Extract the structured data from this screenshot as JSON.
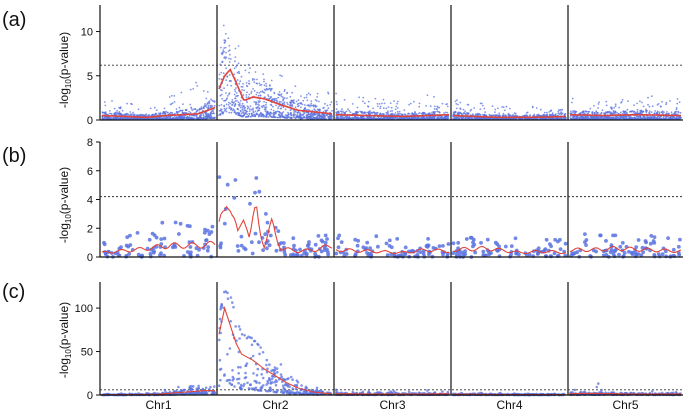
{
  "figure": {
    "colors": {
      "points": "#5b73e0",
      "trend": "#e0443a",
      "axis": "#111111",
      "threshold": "#333333"
    }
  },
  "chart_data": [
    {
      "type": "scatter",
      "panel": "(a)",
      "ylabel_main": "-log",
      "ylabel_sub": "10",
      "ylabel_tail": "(p-value)",
      "ylim": [
        0,
        13
      ],
      "yticks": [
        0,
        5,
        10
      ],
      "threshold": 6.2,
      "chromosomes": [
        "Chr1",
        "Chr2",
        "Chr3",
        "Chr4",
        "Chr5"
      ],
      "density": "high",
      "profile": [
        {
          "chr": 1,
          "x": 0.0,
          "hi": 2.0,
          "med": 0.5
        },
        {
          "chr": 1,
          "x": 0.2,
          "hi": 2.5,
          "med": 0.4
        },
        {
          "chr": 1,
          "x": 0.4,
          "hi": 1.0,
          "med": 0.3
        },
        {
          "chr": 1,
          "x": 0.55,
          "hi": 2.5,
          "med": 0.5
        },
        {
          "chr": 1,
          "x": 0.7,
          "hi": 3.5,
          "med": 0.6
        },
        {
          "chr": 1,
          "x": 0.85,
          "hi": 4.5,
          "med": 0.7
        },
        {
          "chr": 1,
          "x": 1.0,
          "hi": 3.0,
          "med": 1.4
        },
        {
          "chr": 2,
          "x": 0.0,
          "hi": 9.0,
          "med": 3.5
        },
        {
          "chr": 2,
          "x": 0.05,
          "hi": 11.0,
          "med": 5.0
        },
        {
          "chr": 2,
          "x": 0.1,
          "hi": 12.0,
          "med": 5.7
        },
        {
          "chr": 2,
          "x": 0.16,
          "hi": 9.0,
          "med": 4.0
        },
        {
          "chr": 2,
          "x": 0.22,
          "hi": 6.0,
          "med": 2.2
        },
        {
          "chr": 2,
          "x": 0.3,
          "hi": 6.5,
          "med": 2.6
        },
        {
          "chr": 2,
          "x": 0.4,
          "hi": 6.0,
          "med": 2.4
        },
        {
          "chr": 2,
          "x": 0.55,
          "hi": 5.0,
          "med": 1.7
        },
        {
          "chr": 2,
          "x": 0.7,
          "hi": 4.0,
          "med": 1.1
        },
        {
          "chr": 2,
          "x": 0.85,
          "hi": 3.5,
          "med": 0.9
        },
        {
          "chr": 2,
          "x": 1.0,
          "hi": 3.0,
          "med": 0.7
        },
        {
          "chr": 3,
          "x": 0.0,
          "hi": 3.0,
          "med": 0.6
        },
        {
          "chr": 3,
          "x": 0.3,
          "hi": 2.5,
          "med": 0.5
        },
        {
          "chr": 3,
          "x": 0.6,
          "hi": 2.0,
          "med": 0.4
        },
        {
          "chr": 3,
          "x": 0.8,
          "hi": 3.0,
          "med": 0.5
        },
        {
          "chr": 3,
          "x": 1.0,
          "hi": 3.0,
          "med": 0.6
        },
        {
          "chr": 4,
          "x": 0.0,
          "hi": 2.5,
          "med": 0.5
        },
        {
          "chr": 4,
          "x": 0.4,
          "hi": 1.5,
          "med": 0.3
        },
        {
          "chr": 4,
          "x": 0.7,
          "hi": 1.5,
          "med": 0.3
        },
        {
          "chr": 4,
          "x": 1.0,
          "hi": 1.5,
          "med": 0.4
        },
        {
          "chr": 5,
          "x": 0.0,
          "hi": 2.5,
          "med": 0.6
        },
        {
          "chr": 5,
          "x": 0.3,
          "hi": 2.0,
          "med": 0.5
        },
        {
          "chr": 5,
          "x": 0.6,
          "hi": 3.0,
          "med": 0.6
        },
        {
          "chr": 5,
          "x": 1.0,
          "hi": 2.5,
          "med": 0.5
        }
      ]
    },
    {
      "type": "scatter",
      "panel": "(b)",
      "ylabel_main": "-log",
      "ylabel_sub": "10",
      "ylabel_tail": "(p-value)",
      "ylim": [
        0,
        8
      ],
      "yticks": [
        0,
        2,
        4,
        6,
        8
      ],
      "threshold": 4.2,
      "chromosomes": [
        "Chr1",
        "Chr2",
        "Chr3",
        "Chr4",
        "Chr5"
      ],
      "density": "low",
      "profile": [
        {
          "chr": 1,
          "x": 0.0,
          "hi": 1.5,
          "med": 0.3
        },
        {
          "chr": 1,
          "x": 0.3,
          "hi": 2.0,
          "med": 0.5
        },
        {
          "chr": 1,
          "x": 0.6,
          "hi": 2.5,
          "med": 0.8
        },
        {
          "chr": 1,
          "x": 0.85,
          "hi": 2.0,
          "med": 0.8
        },
        {
          "chr": 1,
          "x": 1.0,
          "hi": 2.5,
          "med": 0.9
        },
        {
          "chr": 2,
          "x": 0.0,
          "hi": 5.5,
          "med": 2.0
        },
        {
          "chr": 2,
          "x": 0.07,
          "hi": 6.8,
          "med": 4.8
        },
        {
          "chr": 2,
          "x": 0.12,
          "hi": 6.0,
          "med": 2.5
        },
        {
          "chr": 2,
          "x": 0.17,
          "hi": 5.0,
          "med": 1.5
        },
        {
          "chr": 2,
          "x": 0.22,
          "hi": 5.5,
          "med": 3.5
        },
        {
          "chr": 2,
          "x": 0.27,
          "hi": 5.0,
          "med": 1.2
        },
        {
          "chr": 2,
          "x": 0.33,
          "hi": 5.5,
          "med": 3.3
        },
        {
          "chr": 2,
          "x": 0.4,
          "hi": 3.0,
          "med": 0.8
        },
        {
          "chr": 2,
          "x": 0.47,
          "hi": 3.0,
          "med": 2.2
        },
        {
          "chr": 2,
          "x": 0.55,
          "hi": 2.0,
          "med": 0.6
        },
        {
          "chr": 2,
          "x": 0.7,
          "hi": 1.5,
          "med": 0.4
        },
        {
          "chr": 2,
          "x": 0.85,
          "hi": 1.5,
          "med": 0.5
        },
        {
          "chr": 2,
          "x": 1.0,
          "hi": 1.5,
          "med": 0.8
        },
        {
          "chr": 3,
          "x": 0.0,
          "hi": 1.5,
          "med": 0.5
        },
        {
          "chr": 3,
          "x": 0.3,
          "hi": 1.5,
          "med": 0.4
        },
        {
          "chr": 3,
          "x": 0.6,
          "hi": 1.2,
          "med": 0.3
        },
        {
          "chr": 3,
          "x": 0.8,
          "hi": 1.5,
          "med": 0.5
        },
        {
          "chr": 3,
          "x": 1.0,
          "hi": 1.5,
          "med": 0.4
        },
        {
          "chr": 4,
          "x": 0.0,
          "hi": 1.5,
          "med": 0.5
        },
        {
          "chr": 4,
          "x": 0.3,
          "hi": 1.2,
          "med": 0.6
        },
        {
          "chr": 4,
          "x": 0.6,
          "hi": 1.5,
          "med": 0.3
        },
        {
          "chr": 4,
          "x": 0.8,
          "hi": 1.2,
          "med": 0.4
        },
        {
          "chr": 4,
          "x": 1.0,
          "hi": 1.2,
          "med": 0.3
        },
        {
          "chr": 5,
          "x": 0.0,
          "hi": 3.0,
          "med": 0.5
        },
        {
          "chr": 5,
          "x": 0.2,
          "hi": 1.5,
          "med": 0.5
        },
        {
          "chr": 5,
          "x": 0.4,
          "hi": 1.5,
          "med": 0.6
        },
        {
          "chr": 5,
          "x": 0.7,
          "hi": 1.5,
          "med": 0.5
        },
        {
          "chr": 5,
          "x": 1.0,
          "hi": 1.2,
          "med": 0.4
        }
      ]
    },
    {
      "type": "scatter",
      "panel": "(c)",
      "ylabel_main": "-log",
      "ylabel_sub": "10",
      "ylabel_tail": "(p-value)",
      "ylim": [
        0,
        130
      ],
      "yticks": [
        0,
        50,
        100
      ],
      "threshold": 6,
      "chromosomes": [
        "Chr1",
        "Chr2",
        "Chr3",
        "Chr4",
        "Chr5"
      ],
      "density": "medium",
      "profile": [
        {
          "chr": 1,
          "x": 0.0,
          "hi": 1.0,
          "med": 0.3
        },
        {
          "chr": 1,
          "x": 0.5,
          "hi": 3.0,
          "med": 0.8
        },
        {
          "chr": 1,
          "x": 0.6,
          "hi": 8.0,
          "med": 2.0
        },
        {
          "chr": 1,
          "x": 0.75,
          "hi": 12.0,
          "med": 3.5
        },
        {
          "chr": 1,
          "x": 0.9,
          "hi": 14.0,
          "med": 5.0
        },
        {
          "chr": 1,
          "x": 1.0,
          "hi": 10.0,
          "med": 5.0
        },
        {
          "chr": 2,
          "x": 0.0,
          "hi": 90.0,
          "med": 70.0
        },
        {
          "chr": 2,
          "x": 0.05,
          "hi": 120.0,
          "med": 100.0
        },
        {
          "chr": 2,
          "x": 0.1,
          "hi": 115.0,
          "med": 80.0
        },
        {
          "chr": 2,
          "x": 0.15,
          "hi": 90.0,
          "med": 60.0
        },
        {
          "chr": 2,
          "x": 0.2,
          "hi": 70.0,
          "med": 47.0
        },
        {
          "chr": 2,
          "x": 0.3,
          "hi": 65.0,
          "med": 40.0
        },
        {
          "chr": 2,
          "x": 0.4,
          "hi": 50.0,
          "med": 30.0
        },
        {
          "chr": 2,
          "x": 0.5,
          "hi": 40.0,
          "med": 22.0
        },
        {
          "chr": 2,
          "x": 0.6,
          "hi": 30.0,
          "med": 14.0
        },
        {
          "chr": 2,
          "x": 0.7,
          "hi": 20.0,
          "med": 8.0
        },
        {
          "chr": 2,
          "x": 0.85,
          "hi": 10.0,
          "med": 3.0
        },
        {
          "chr": 2,
          "x": 1.0,
          "hi": 6.0,
          "med": 1.5
        },
        {
          "chr": 3,
          "x": 0.0,
          "hi": 6.0,
          "med": 1.5
        },
        {
          "chr": 3,
          "x": 0.4,
          "hi": 4.0,
          "med": 1.0
        },
        {
          "chr": 3,
          "x": 0.8,
          "hi": 5.0,
          "med": 1.2
        },
        {
          "chr": 3,
          "x": 1.0,
          "hi": 6.0,
          "med": 1.5
        },
        {
          "chr": 4,
          "x": 0.0,
          "hi": 3.0,
          "med": 1.0
        },
        {
          "chr": 4,
          "x": 0.5,
          "hi": 2.0,
          "med": 0.6
        },
        {
          "chr": 4,
          "x": 1.0,
          "hi": 2.0,
          "med": 0.6
        },
        {
          "chr": 5,
          "x": 0.0,
          "hi": 6.0,
          "med": 1.5
        },
        {
          "chr": 5,
          "x": 0.2,
          "hi": 15.0,
          "med": 2.0
        },
        {
          "chr": 5,
          "x": 0.5,
          "hi": 5.0,
          "med": 1.2
        },
        {
          "chr": 5,
          "x": 1.0,
          "hi": 4.0,
          "med": 1.0
        }
      ]
    }
  ]
}
